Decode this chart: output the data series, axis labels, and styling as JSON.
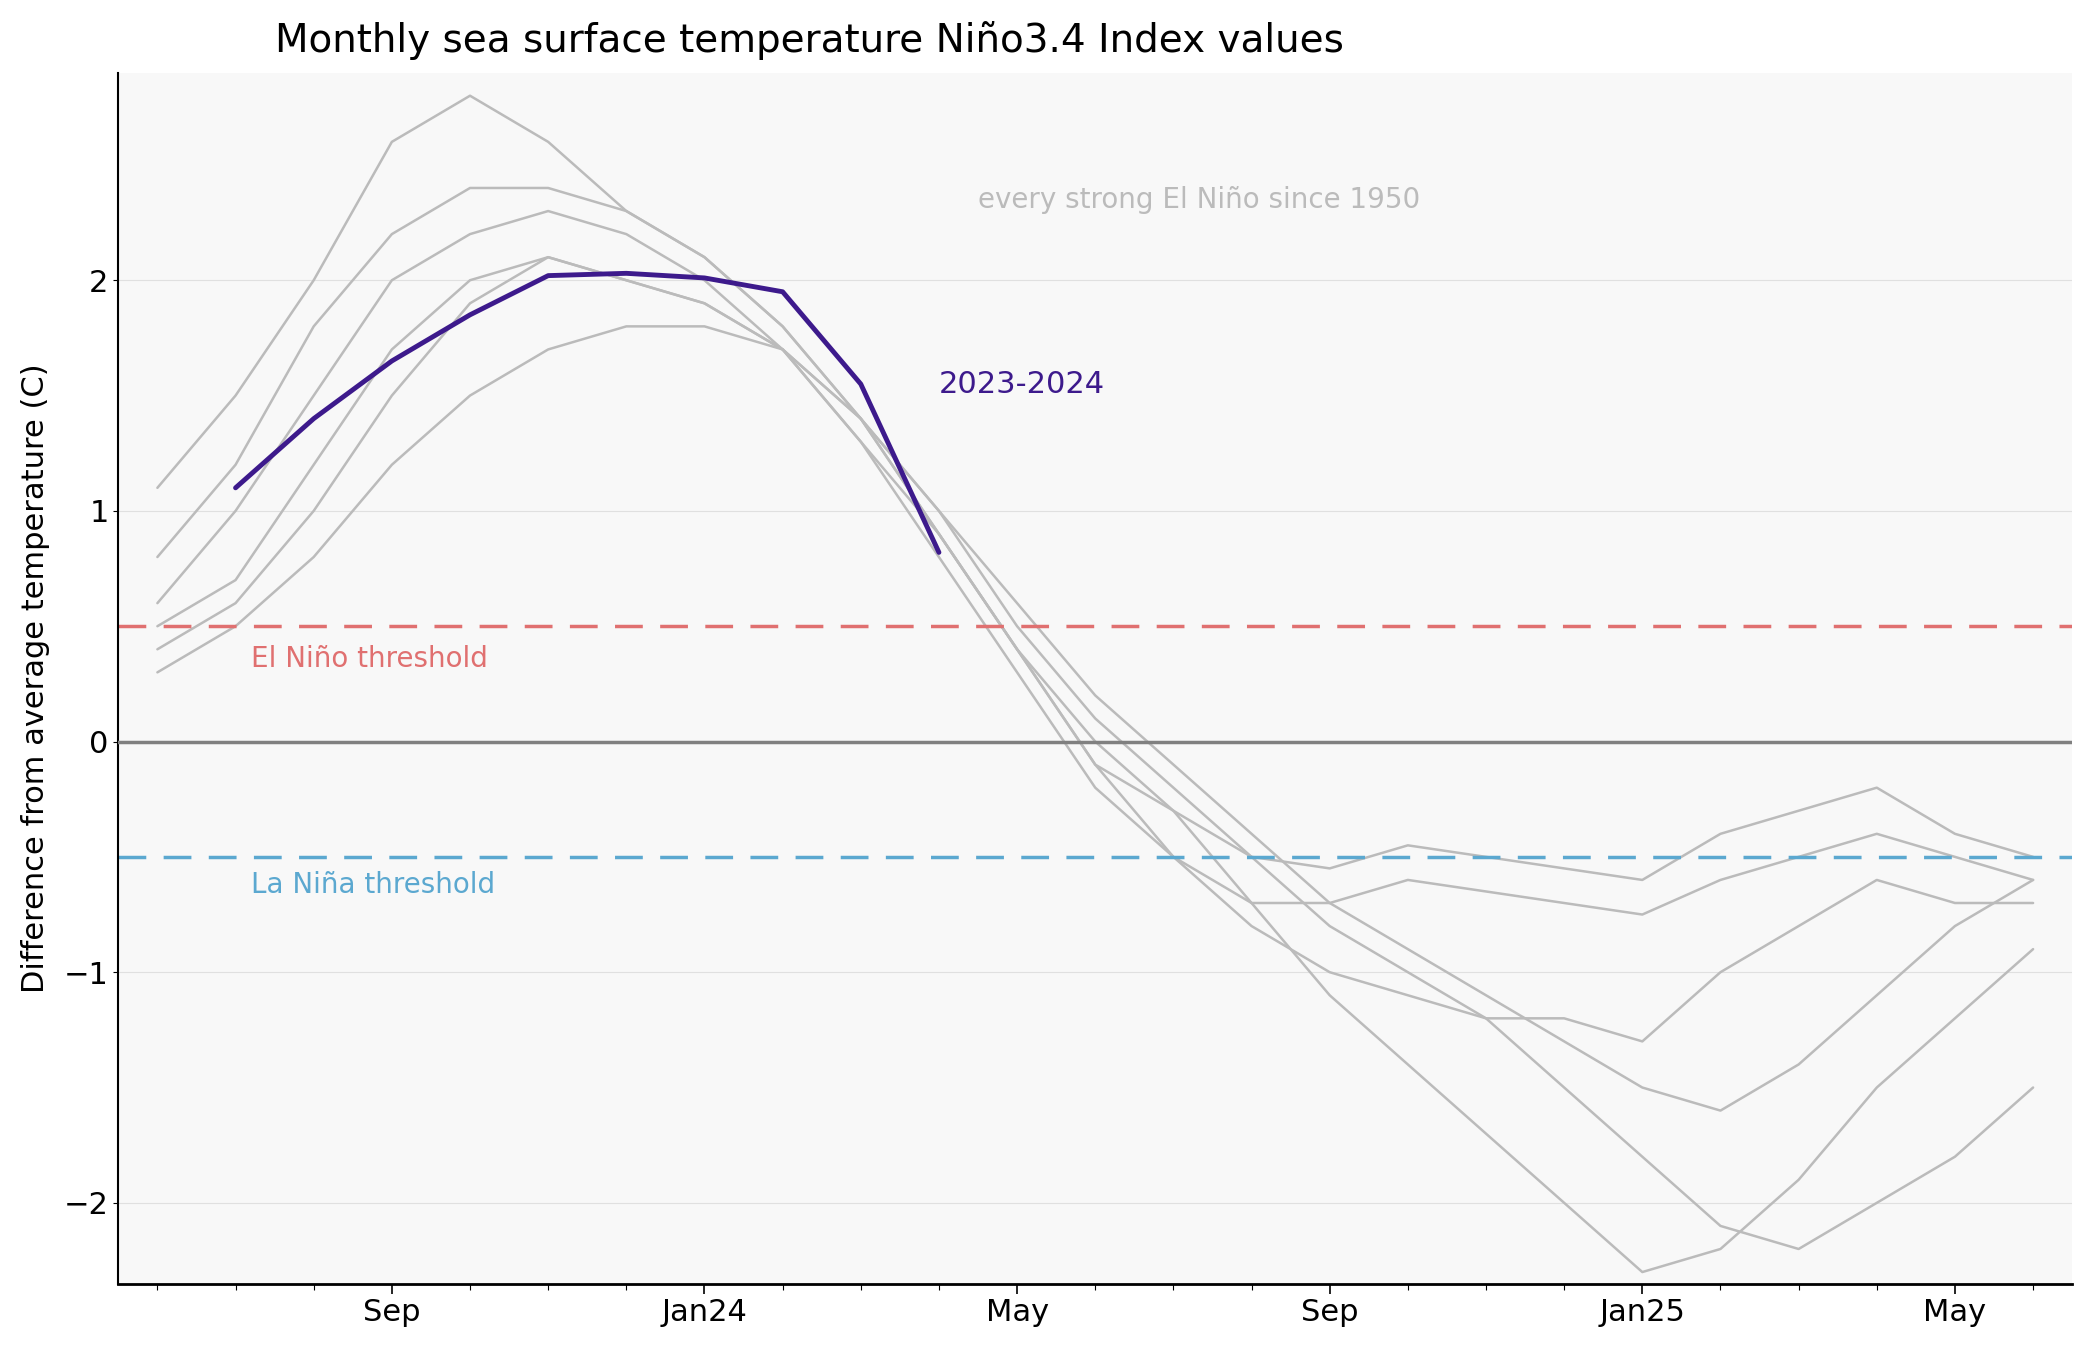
{
  "title": "Monthly sea surface temperature Niño3.4 Index values",
  "ylabel": "Difference from average temperature (C)",
  "el_nino_threshold": 0.5,
  "la_nina_threshold": -0.5,
  "el_nino_label": "El Niño threshold",
  "la_nina_label": "La Niña threshold",
  "annotation_gray": "every strong El Niño since 1950",
  "annotation_purple": "2023-2024",
  "purple_color": "#3d1a8c",
  "gray_color": "#bbbbbb",
  "el_nino_color": "#e07070",
  "la_nina_color": "#5ba8d0",
  "zero_line_color": "#808080",
  "ylim": [
    -2.35,
    2.9
  ],
  "xtick_labels": [
    "Sep",
    "Jan24",
    "May",
    "Sep",
    "Jan25",
    "May"
  ],
  "xtick_positions": [
    3,
    7,
    11,
    15,
    19,
    23
  ],
  "purple_line_x": [
    1,
    2,
    3,
    4,
    5,
    6,
    7,
    8,
    9,
    10
  ],
  "purple_line_y": [
    1.1,
    1.4,
    1.65,
    1.85,
    2.02,
    2.03,
    2.01,
    1.95,
    1.55,
    0.82
  ],
  "historical_lines": [
    {
      "x": [
        0,
        1,
        2,
        3,
        4,
        5,
        6,
        7,
        8,
        9,
        10,
        11,
        12,
        13,
        14,
        15,
        16,
        17,
        18,
        19,
        20,
        21,
        22,
        23,
        24
      ],
      "y": [
        1.1,
        1.5,
        2.0,
        2.6,
        2.8,
        2.6,
        2.3,
        2.1,
        1.8,
        1.4,
        0.9,
        0.4,
        -0.1,
        -0.3,
        -0.5,
        -0.55,
        -0.45,
        -0.5,
        -0.55,
        -0.6,
        -0.4,
        -0.3,
        -0.2,
        -0.4,
        -0.5
      ]
    },
    {
      "x": [
        0,
        1,
        2,
        3,
        4,
        5,
        6,
        7,
        8,
        9,
        10,
        11,
        12,
        13,
        14,
        15,
        16,
        17,
        18,
        19,
        20,
        21,
        22,
        23,
        24
      ],
      "y": [
        0.8,
        1.2,
        1.8,
        2.2,
        2.4,
        2.4,
        2.3,
        2.1,
        1.8,
        1.4,
        0.9,
        0.4,
        -0.1,
        -0.5,
        -0.7,
        -0.7,
        -0.6,
        -0.65,
        -0.7,
        -0.75,
        -0.6,
        -0.5,
        -0.4,
        -0.5,
        -0.6
      ]
    },
    {
      "x": [
        0,
        1,
        2,
        3,
        4,
        5,
        6,
        7,
        8,
        9,
        10,
        11,
        12,
        13,
        14,
        15,
        16,
        17,
        18,
        19,
        20,
        21,
        22,
        23,
        24
      ],
      "y": [
        0.6,
        1.0,
        1.5,
        2.0,
        2.2,
        2.3,
        2.2,
        2.0,
        1.7,
        1.3,
        0.8,
        0.3,
        -0.2,
        -0.5,
        -0.8,
        -1.0,
        -1.1,
        -1.2,
        -1.2,
        -1.3,
        -1.0,
        -0.8,
        -0.6,
        -0.7,
        -0.7
      ]
    },
    {
      "x": [
        0,
        1,
        2,
        3,
        4,
        5,
        6,
        7,
        8,
        9,
        10,
        11,
        12,
        13,
        14,
        15,
        16,
        17,
        18,
        19,
        20,
        21,
        22,
        23,
        24
      ],
      "y": [
        0.5,
        0.7,
        1.2,
        1.7,
        2.0,
        2.1,
        2.0,
        1.9,
        1.7,
        1.4,
        1.0,
        0.5,
        0.1,
        -0.2,
        -0.5,
        -0.8,
        -1.0,
        -1.2,
        -1.5,
        -1.8,
        -2.1,
        -2.2,
        -2.0,
        -1.8,
        -1.5
      ]
    },
    {
      "x": [
        0,
        1,
        2,
        3,
        4,
        5,
        6,
        7,
        8,
        9,
        10,
        11,
        12,
        13,
        14,
        15,
        16,
        17,
        18,
        19,
        20,
        21,
        22,
        23,
        24
      ],
      "y": [
        0.4,
        0.6,
        1.0,
        1.5,
        1.9,
        2.1,
        2.0,
        1.9,
        1.7,
        1.3,
        0.9,
        0.4,
        0.0,
        -0.3,
        -0.7,
        -1.1,
        -1.4,
        -1.7,
        -2.0,
        -2.3,
        -2.2,
        -1.9,
        -1.5,
        -1.2,
        -0.9
      ]
    },
    {
      "x": [
        0,
        1,
        2,
        3,
        4,
        5,
        6,
        7,
        8,
        9,
        10,
        11,
        12,
        13,
        14,
        15,
        16,
        17,
        18,
        19,
        20,
        21,
        22,
        23,
        24
      ],
      "y": [
        0.3,
        0.5,
        0.8,
        1.2,
        1.5,
        1.7,
        1.8,
        1.8,
        1.7,
        1.4,
        1.0,
        0.6,
        0.2,
        -0.1,
        -0.4,
        -0.7,
        -0.9,
        -1.1,
        -1.3,
        -1.5,
        -1.6,
        -1.4,
        -1.1,
        -0.8,
        -0.6
      ]
    }
  ],
  "n_months": 25,
  "background_color": "#f8f8f8"
}
